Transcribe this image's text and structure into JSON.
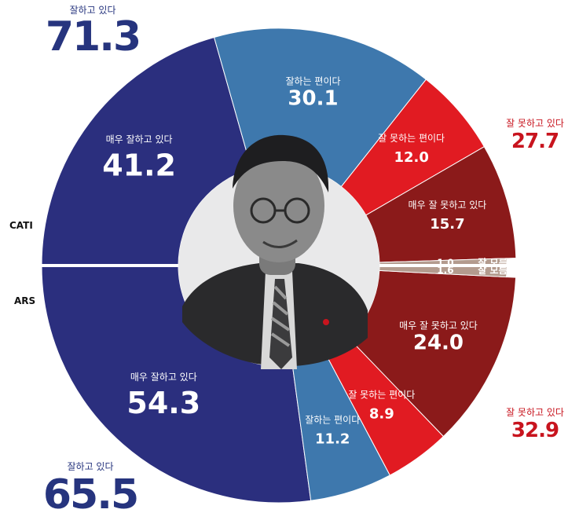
{
  "chart_data": {
    "type": "pie",
    "layout": "donut",
    "colors": {
      "very_good": "#2b2f7e",
      "good": "#3e78ad",
      "bad": "#e11b22",
      "very_bad": "#8b1a1a",
      "unknown": "#b39b8e"
    },
    "surveys": [
      {
        "name": "CATI",
        "segments": [
          {
            "label": "매우 잘하고 있다",
            "value": 41.2,
            "category": "very_good"
          },
          {
            "label": "잘하는 편이다",
            "value": 30.1,
            "category": "good"
          },
          {
            "label": "잘 못하는 편이다",
            "value": 12.0,
            "category": "bad"
          },
          {
            "label": "매우 잘 못하고 있다",
            "value": 15.7,
            "category": "very_bad"
          },
          {
            "label": "잘 모름",
            "value": 1.0,
            "category": "unknown"
          }
        ],
        "totals": {
          "positive": {
            "label": "잘하고 있다",
            "value": "71.3"
          },
          "negative": {
            "label": "잘 못하고 있다",
            "value": "27.7"
          }
        }
      },
      {
        "name": "ARS",
        "segments": [
          {
            "label": "매우 잘하고 있다",
            "value": 54.3,
            "category": "very_good"
          },
          {
            "label": "잘하는 편이다",
            "value": 11.2,
            "category": "good"
          },
          {
            "label": "잘 못하는 편이다",
            "value": 8.9,
            "category": "bad"
          },
          {
            "label": "매우 잘 못하고 있다",
            "value": 24.0,
            "category": "very_bad"
          },
          {
            "label": "잘 모름",
            "value": 1.6,
            "category": "unknown"
          }
        ],
        "totals": {
          "positive": {
            "label": "잘하고 있다",
            "value": "65.5"
          },
          "negative": {
            "label": "잘 못하고 있다",
            "value": "32.9"
          }
        }
      }
    ]
  },
  "center_image": "portrait-photo"
}
